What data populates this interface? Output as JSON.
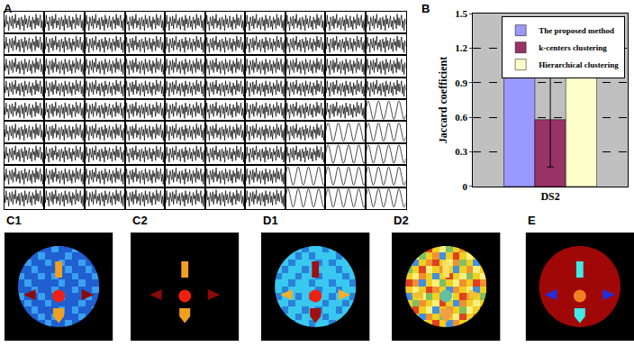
{
  "chart_data": [
    {
      "label": "A",
      "type": "line",
      "tick_labels": false,
      "rows": 9,
      "cols": 10,
      "color": "#000000",
      "xlim": [
        0,
        47
      ],
      "ylim": [
        -1.2,
        1.2
      ],
      "signals": {
        "noise": [
          0.3,
          -0.5,
          0.8,
          -0.2,
          0.1,
          -0.9,
          0.6,
          0.2,
          -0.4,
          0.7,
          -0.7,
          0.4,
          -0.1,
          0.9,
          -0.6,
          0.2,
          -0.3,
          0.5,
          -0.8,
          0.1,
          0.6,
          -0.4,
          0.3,
          -0.9,
          0.8,
          -0.2,
          0.4,
          -0.6,
          0.1,
          0.7,
          -0.5,
          0.2,
          -0.8,
          0.6,
          -0.1,
          0.3,
          -0.7,
          0.9,
          -0.3,
          0.5,
          -0.4,
          0.1,
          0.8,
          -0.6,
          0.2,
          -0.9,
          0.4,
          -0.2
        ],
        "sine": [
          0,
          0.5,
          0.87,
          1,
          0.87,
          0.5,
          0,
          -0.5,
          -0.87,
          -1,
          -0.87,
          -0.5,
          0,
          0.5,
          0.87,
          1,
          0.87,
          0.5,
          0,
          -0.5,
          -0.87,
          -1,
          -0.87,
          -0.5,
          0,
          0.5,
          0.87,
          1,
          0.87,
          0.5,
          0,
          -0.5,
          -0.87,
          -1,
          -0.87,
          -0.5,
          0,
          0.5,
          0.87,
          1,
          0.87,
          0.5,
          0,
          -0.5,
          -0.87,
          -1,
          -0.87,
          -0.5
        ]
      },
      "sine_cells": [
        [
          4,
          9
        ],
        [
          5,
          8
        ],
        [
          5,
          9
        ],
        [
          6,
          8
        ],
        [
          6,
          9
        ],
        [
          7,
          7
        ],
        [
          7,
          8
        ],
        [
          7,
          9
        ],
        [
          8,
          7
        ],
        [
          8,
          8
        ],
        [
          8,
          9
        ]
      ]
    },
    {
      "label": "B",
      "type": "bar",
      "categories": [
        "DS2"
      ],
      "ylabel": "Jaccard coefficient",
      "ylim": [
        0,
        1.5
      ],
      "yticks": [
        0,
        0.3,
        0.6,
        0.9,
        1.2,
        1.5
      ],
      "grid": true,
      "legend": "top right",
      "series": [
        {
          "name": "The proposed method",
          "color": "#9999ff",
          "values": [
            1.0
          ]
        },
        {
          "name": "k-centers clustering",
          "color": "#993366",
          "values": [
            0.58
          ],
          "error": [
            0.41
          ]
        },
        {
          "name": "Hierarchical clustering",
          "color": "#ffffcc",
          "values": [
            0.95
          ]
        }
      ]
    },
    {
      "type": "image",
      "geometry": {
        "extent": [
          0,
          40
        ],
        "background": "#000000",
        "circle": {
          "cx": 20,
          "cy": 20,
          "r": 15
        },
        "center": {
          "cx": 20,
          "cy": 16.5,
          "r": 2.3
        },
        "top": [
          [
            18.7,
            23.3
          ],
          [
            21.3,
            23.3
          ],
          [
            21.3,
            29.3
          ],
          [
            18.7,
            29.3
          ]
        ],
        "left": [
          [
            7,
            17
          ],
          [
            11.5,
            15
          ],
          [
            11.5,
            19
          ]
        ],
        "right": [
          [
            33,
            17
          ],
          [
            28.5,
            15
          ],
          [
            28.5,
            19
          ]
        ],
        "bottom": [
          [
            18,
            12
          ],
          [
            22,
            12
          ],
          [
            22,
            9
          ],
          [
            20,
            6.5
          ],
          [
            18,
            9
          ]
        ]
      },
      "maps": [
        {
          "label": "C1",
          "palette": [
            "#1f5fd0",
            "#3aa0f0"
          ],
          "texture": [
            [
              0,
              1,
              0,
              0,
              1,
              0,
              0,
              1,
              0,
              0,
              1,
              0
            ],
            [
              1,
              0,
              0,
              1,
              0,
              1,
              0,
              0,
              0,
              1,
              0,
              0
            ],
            [
              0,
              0,
              1,
              0,
              0,
              0,
              1,
              0,
              1,
              0,
              0,
              1
            ],
            [
              0,
              1,
              0,
              0,
              1,
              0,
              0,
              0,
              0,
              1,
              0,
              0
            ],
            [
              1,
              0,
              0,
              1,
              0,
              0,
              1,
              0,
              0,
              0,
              1,
              0
            ],
            [
              0,
              0,
              1,
              0,
              0,
              1,
              0,
              0,
              1,
              0,
              0,
              1
            ],
            [
              0,
              1,
              0,
              0,
              0,
              0,
              1,
              0,
              0,
              1,
              0,
              0
            ],
            [
              1,
              0,
              0,
              1,
              0,
              1,
              0,
              0,
              1,
              0,
              0,
              1
            ],
            [
              0,
              0,
              1,
              0,
              0,
              0,
              0,
              1,
              0,
              0,
              1,
              0
            ],
            [
              0,
              1,
              0,
              0,
              1,
              0,
              1,
              0,
              0,
              1,
              0,
              0
            ],
            [
              1,
              0,
              0,
              1,
              0,
              0,
              0,
              1,
              0,
              0,
              0,
              1
            ],
            [
              0,
              0,
              1,
              0,
              0,
              1,
              0,
              0,
              1,
              0,
              1,
              0
            ]
          ],
          "colors": {
            "top": "#f0a020",
            "center": "#f02010",
            "left": "#8b0a0a",
            "right": "#8b0a0a",
            "bottom": "#f0a020"
          }
        },
        {
          "label": "C2",
          "fill": "#000000",
          "colors": {
            "top": "#f0a020",
            "center": "#f02010",
            "left": "#8b0a0a",
            "right": "#8b0a0a",
            "bottom": "#f0a020"
          }
        },
        {
          "label": "D1",
          "palette": [
            "#38c8f0",
            "#2a80d8"
          ],
          "texture": [
            [
              0,
              0,
              1,
              0,
              0,
              1,
              0,
              0,
              1,
              0,
              1,
              0
            ],
            [
              1,
              0,
              0,
              1,
              0,
              0,
              0,
              1,
              0,
              0,
              0,
              1
            ],
            [
              0,
              1,
              0,
              0,
              1,
              0,
              1,
              0,
              0,
              1,
              0,
              0
            ],
            [
              0,
              0,
              1,
              0,
              0,
              0,
              0,
              1,
              0,
              0,
              1,
              0
            ],
            [
              1,
              0,
              0,
              1,
              0,
              1,
              0,
              0,
              1,
              0,
              0,
              1
            ],
            [
              0,
              1,
              0,
              0,
              0,
              0,
              1,
              0,
              0,
              1,
              0,
              0
            ],
            [
              0,
              0,
              1,
              0,
              0,
              1,
              0,
              0,
              1,
              0,
              0,
              1
            ],
            [
              1,
              0,
              0,
              1,
              0,
              0,
              1,
              0,
              0,
              0,
              1,
              0
            ],
            [
              0,
              1,
              0,
              0,
              1,
              0,
              0,
              0,
              0,
              1,
              0,
              0
            ],
            [
              0,
              0,
              1,
              0,
              0,
              0,
              1,
              0,
              1,
              0,
              0,
              1
            ],
            [
              1,
              0,
              0,
              1,
              0,
              1,
              0,
              0,
              0,
              1,
              0,
              0
            ],
            [
              0,
              1,
              0,
              0,
              1,
              0,
              0,
              1,
              0,
              0,
              1,
              0
            ]
          ],
          "colors": {
            "top": "#a01010",
            "center": "#f02010",
            "left": "#f0b030",
            "right": "#f0b030",
            "bottom": "#a01010"
          }
        },
        {
          "label": "D2",
          "palette": [
            "#f0d020",
            "#f09030",
            "#f8f080",
            "#e04020",
            "#4090e0",
            "#80c060"
          ],
          "texture": [
            [
              0,
              1,
              2,
              0,
              3,
              0,
              4,
              1,
              0,
              2,
              5,
              0
            ],
            [
              2,
              0,
              4,
              1,
              0,
              5,
              0,
              2,
              3,
              0,
              1,
              4
            ],
            [
              1,
              3,
              0,
              2,
              4,
              0,
              1,
              0,
              5,
              2,
              0,
              3
            ],
            [
              0,
              5,
              1,
              0,
              2,
              3,
              0,
              4,
              1,
              0,
              2,
              0
            ],
            [
              4,
              0,
              2,
              5,
              0,
              1,
              2,
              0,
              3,
              1,
              0,
              5
            ],
            [
              0,
              2,
              0,
              3,
              1,
              0,
              4,
              1,
              0,
              2,
              4,
              0
            ],
            [
              3,
              1,
              4,
              0,
              2,
              5,
              0,
              2,
              1,
              0,
              3,
              1
            ],
            [
              0,
              2,
              1,
              0,
              4,
              0,
              3,
              0,
              2,
              5,
              0,
              2
            ],
            [
              5,
              0,
              3,
              2,
              0,
              1,
              0,
              4,
              0,
              1,
              2,
              0
            ],
            [
              1,
              4,
              0,
              1,
              3,
              0,
              2,
              1,
              5,
              0,
              4,
              1
            ],
            [
              0,
              2,
              5,
              0,
              1,
              4,
              0,
              3,
              0,
              2,
              0,
              3
            ],
            [
              2,
              0,
              1,
              3,
              0,
              2,
              5,
              0,
              1,
              4,
              1,
              0
            ]
          ],
          "colors": {
            "top": "#f8e060",
            "center": "#60c0a0",
            "left": "#f0c030",
            "right": "#f0c030",
            "bottom": "#f0a040"
          }
        },
        {
          "label": "E",
          "fill": "#a00808",
          "colors": {
            "top": "#40e8e8",
            "center": "#f08020",
            "left": "#2030e0",
            "right": "#2030e0",
            "bottom": "#40e8e8"
          }
        }
      ]
    }
  ]
}
